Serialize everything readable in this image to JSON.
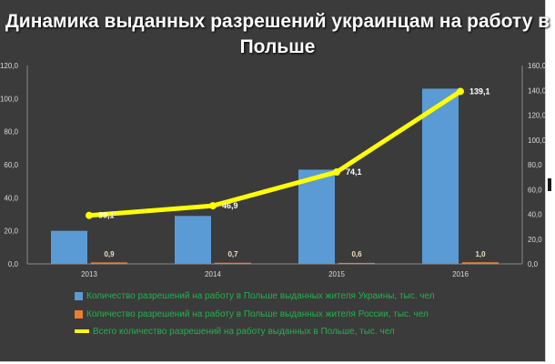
{
  "chart_data": {
    "type": "bar",
    "title": "Динамика выданных разрешений украинцам на работу в Польше",
    "categories": [
      "2013",
      "2014",
      "2015",
      "2016"
    ],
    "series": [
      {
        "name": "Количество разрешений на работу в Польше  выданных жителя Украины, тыс. чел",
        "type": "bar",
        "axis": "left",
        "color": "#5b9bd5",
        "values": [
          20.0,
          29.0,
          57.0,
          106.0
        ]
      },
      {
        "name": "Количество разрешений на работу в Польше  выданных жителя России, тыс. чел",
        "type": "bar",
        "axis": "left",
        "color": "#ed7d31",
        "values": [
          0.9,
          0.7,
          0.6,
          1.0
        ],
        "labels": [
          "0,9",
          "0,7",
          "0,6",
          "1,0"
        ]
      },
      {
        "name": "Всего количество разрешений на работу выданных в Польше, тыс. чел",
        "type": "line",
        "axis": "right",
        "color": "#ffff00",
        "values": [
          39.1,
          46.9,
          74.1,
          139.1
        ],
        "labels": [
          "39,1",
          "46,9",
          "74,1",
          "139,1"
        ]
      }
    ],
    "left_axis": {
      "ylim": [
        0,
        120
      ],
      "ticks": [
        "0,0",
        "20,0",
        "40,0",
        "60,0",
        "80,0",
        "100,0",
        "120,0"
      ]
    },
    "right_axis": {
      "ylim": [
        0,
        160
      ],
      "ticks": [
        "0,0",
        "20,0",
        "40,0",
        "60,0",
        "80,0",
        "100,0",
        "120,0",
        "140,0",
        "160,0"
      ]
    },
    "grid": false,
    "legend_position": "bottom-left",
    "colors": {
      "background": "#3b3b3b",
      "legend_text": "#22b24c",
      "axis_text": "#d9d9d9"
    }
  }
}
